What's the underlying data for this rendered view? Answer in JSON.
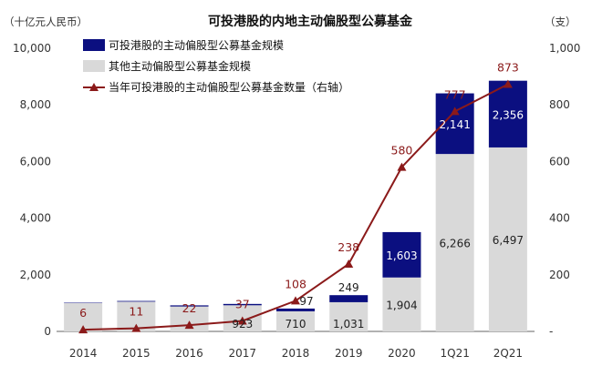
{
  "chart_data": {
    "type": "bar+line",
    "title": "可投港股的内地主动偏股型公募基金",
    "left_unit": "（十亿元人民币）",
    "right_unit": "（支）",
    "categories": [
      "2014",
      "2015",
      "2016",
      "2017",
      "2018",
      "2019",
      "2020",
      "1Q21",
      "2Q21"
    ],
    "y_left": {
      "ylim": [
        0,
        10000
      ],
      "ticks": [
        0,
        2000,
        4000,
        6000,
        8000,
        10000
      ],
      "tick_labels": [
        "0",
        "2,000",
        "4,000",
        "6,000",
        "8,000",
        "10,000"
      ]
    },
    "y_right": {
      "ylim": [
        0,
        1000
      ],
      "ticks": [
        0,
        200,
        400,
        600,
        800,
        1000
      ],
      "tick_labels": [
        "-",
        "200",
        "400",
        "600",
        "800",
        "1,000"
      ]
    },
    "series": [
      {
        "name": "可投港股的主动偏股型公募基金规模",
        "type": "bar",
        "axis": "left",
        "color": "#0b0f80",
        "values": [
          15,
          25,
          40,
          47,
          97,
          249,
          1603,
          2141,
          2356
        ],
        "labels": [
          "",
          "",
          "",
          "",
          "97",
          "249",
          "1,603",
          "2,141",
          "2,356"
        ]
      },
      {
        "name": "其他主动偏股型公募基金规模",
        "type": "bar",
        "axis": "left",
        "color": "#d9d9d9",
        "values": [
          1000,
          1050,
          880,
          923,
          710,
          1031,
          1904,
          6266,
          6497
        ],
        "labels": [
          "",
          "",
          "",
          "923",
          "710",
          "1,031",
          "1,904",
          "6,266",
          "6,497"
        ]
      },
      {
        "name": "当年可投港股的主动偏股型公募基金数量（右轴）",
        "type": "line",
        "axis": "right",
        "color": "#8b1a1a",
        "values": [
          6,
          11,
          22,
          37,
          108,
          238,
          580,
          777,
          873
        ],
        "labels": [
          "6",
          "11",
          "22",
          "37",
          "108",
          "238",
          "580",
          "777",
          "873"
        ]
      }
    ],
    "legend": "top-left"
  }
}
